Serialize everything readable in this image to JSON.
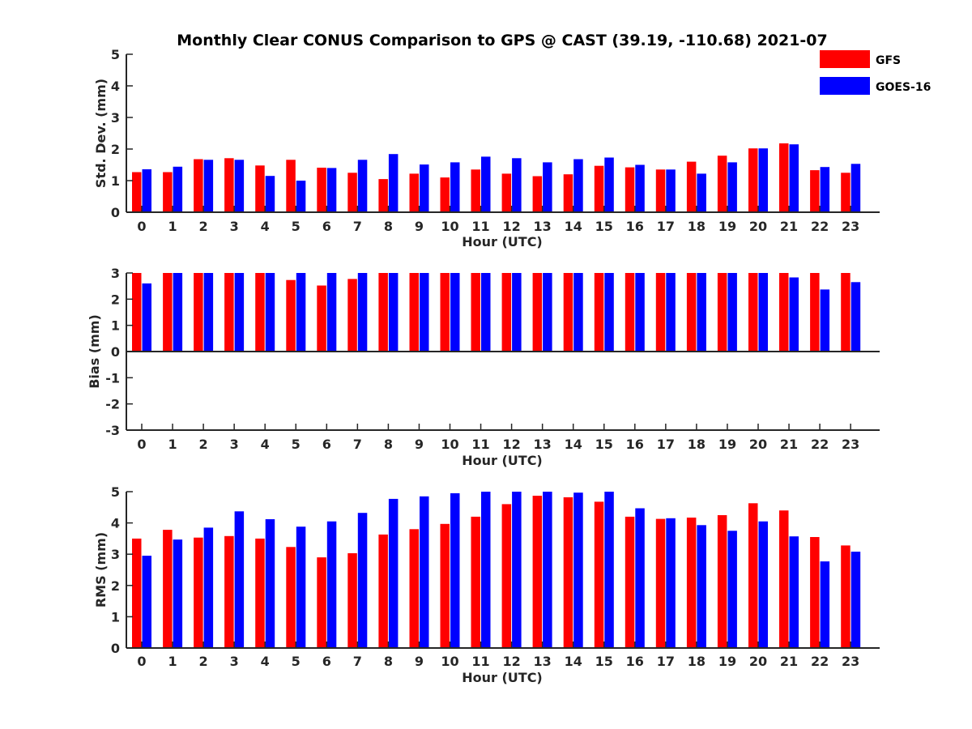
{
  "title": "Monthly Clear CONUS Comparison to GPS @ CAST (39.19, -110.68) 2021-07",
  "colors": {
    "GFS": "#ff0000",
    "GOES-16": "#0000ff"
  },
  "legend": [
    {
      "name": "GFS",
      "color": "#ff0000"
    },
    {
      "name": "GOES-16",
      "color": "#0000ff"
    }
  ],
  "chart_data": [
    {
      "type": "bar",
      "title": "Monthly Clear CONUS Comparison to GPS @ CAST (39.19, -110.68) 2021-07",
      "ylabel": "Std. Dev. (mm)",
      "xlabel": "Hour (UTC)",
      "ylim": [
        0,
        5
      ],
      "yticks": [
        0,
        1,
        2,
        3,
        4,
        5
      ],
      "categories": [
        "0",
        "1",
        "2",
        "3",
        "4",
        "5",
        "6",
        "7",
        "8",
        "9",
        "10",
        "11",
        "12",
        "13",
        "14",
        "15",
        "16",
        "17",
        "18",
        "19",
        "20",
        "21",
        "22",
        "23"
      ],
      "legend_position": "top-right",
      "series": [
        {
          "name": "GFS",
          "color": "#ff0000",
          "values": [
            1.27,
            1.27,
            1.68,
            1.71,
            1.48,
            1.66,
            1.41,
            1.25,
            1.05,
            1.22,
            1.1,
            1.35,
            1.22,
            1.14,
            1.2,
            1.47,
            1.42,
            1.35,
            1.6,
            1.79,
            2.02,
            2.18,
            1.33,
            1.25
          ]
        },
        {
          "name": "GOES-16",
          "color": "#0000ff",
          "values": [
            1.36,
            1.44,
            1.66,
            1.66,
            1.15,
            1.0,
            1.4,
            1.66,
            1.84,
            1.51,
            1.58,
            1.76,
            1.71,
            1.58,
            1.68,
            1.73,
            1.5,
            1.35,
            1.22,
            1.58,
            2.02,
            2.15,
            1.43,
            1.53
          ]
        }
      ]
    },
    {
      "type": "bar",
      "ylabel": "Bias (mm)",
      "xlabel": "Hour (UTC)",
      "ylim": [
        -3,
        3
      ],
      "yticks": [
        -3,
        -2,
        -1,
        0,
        1,
        2,
        3
      ],
      "categories": [
        "0",
        "1",
        "2",
        "3",
        "4",
        "5",
        "6",
        "7",
        "8",
        "9",
        "10",
        "11",
        "12",
        "13",
        "14",
        "15",
        "16",
        "17",
        "18",
        "19",
        "20",
        "21",
        "22",
        "23"
      ],
      "series": [
        {
          "name": "GFS",
          "color": "#ff0000",
          "values": [
            3.0,
            3.0,
            3.0,
            3.0,
            3.0,
            2.73,
            2.52,
            2.77,
            3.0,
            3.0,
            3.0,
            3.0,
            3.0,
            3.0,
            3.0,
            3.0,
            3.0,
            3.0,
            3.0,
            3.0,
            3.0,
            3.0,
            3.0,
            3.0
          ]
        },
        {
          "name": "GOES-16",
          "color": "#0000ff",
          "values": [
            2.6,
            3.0,
            3.0,
            3.0,
            3.0,
            3.0,
            3.0,
            3.0,
            3.0,
            3.0,
            3.0,
            3.0,
            3.0,
            3.0,
            3.0,
            3.0,
            3.0,
            3.0,
            3.0,
            3.0,
            3.0,
            2.83,
            2.37,
            2.65
          ]
        }
      ]
    },
    {
      "type": "bar",
      "ylabel": "RMS (mm)",
      "xlabel": "Hour (UTC)",
      "ylim": [
        0,
        5
      ],
      "yticks": [
        0,
        1,
        2,
        3,
        4,
        5
      ],
      "categories": [
        "0",
        "1",
        "2",
        "3",
        "4",
        "5",
        "6",
        "7",
        "8",
        "9",
        "10",
        "11",
        "12",
        "13",
        "14",
        "15",
        "16",
        "17",
        "18",
        "19",
        "20",
        "21",
        "22",
        "23"
      ],
      "series": [
        {
          "name": "GFS",
          "color": "#ff0000",
          "values": [
            3.5,
            3.78,
            3.53,
            3.58,
            3.5,
            3.23,
            2.9,
            3.03,
            3.63,
            3.8,
            3.97,
            4.2,
            4.6,
            4.87,
            4.82,
            4.68,
            4.2,
            4.13,
            4.17,
            4.25,
            4.63,
            4.4,
            3.55,
            3.28
          ]
        },
        {
          "name": "GOES-16",
          "color": "#0000ff",
          "values": [
            2.95,
            3.47,
            3.85,
            4.37,
            4.12,
            3.88,
            4.05,
            4.32,
            4.77,
            4.85,
            4.95,
            5.0,
            5.0,
            5.0,
            4.97,
            5.0,
            4.47,
            4.15,
            3.93,
            3.75,
            4.05,
            3.57,
            2.77,
            3.08
          ]
        }
      ]
    }
  ]
}
